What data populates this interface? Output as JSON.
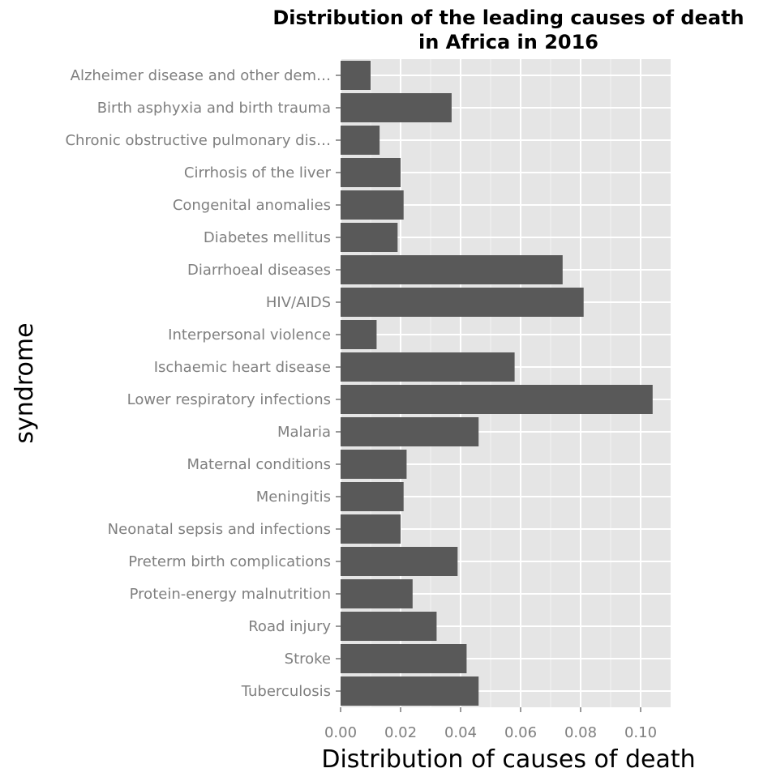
{
  "chart_data": {
    "type": "bar",
    "orientation": "horizontal",
    "title_lines": [
      "Distribution of the leading causes of death",
      "in Africa in 2016"
    ],
    "xlabel": "Distribution of causes of death",
    "ylabel": "syndrome",
    "xlim": [
      0,
      0.11
    ],
    "xticks": [
      0.0,
      0.02,
      0.04,
      0.06,
      0.08,
      0.1
    ],
    "xtick_labels": [
      "0.00",
      "0.02",
      "0.04",
      "0.06",
      "0.08",
      "0.10"
    ],
    "grid": true,
    "colors": {
      "bar": "#595959",
      "panel": "#e5e5e5",
      "grid": "#ffffff"
    },
    "categories": [
      "Alzheimer disease and other dem…",
      "Birth asphyxia and birth trauma",
      "Chronic obstructive pulmonary dis…",
      "Cirrhosis of the liver",
      "Congenital anomalies",
      "Diabetes mellitus",
      "Diarrhoeal diseases",
      "HIV/AIDS",
      "Interpersonal violence",
      "Ischaemic heart disease",
      "Lower respiratory infections",
      "Malaria",
      "Maternal conditions",
      "Meningitis",
      "Neonatal sepsis and infections",
      "Preterm birth complications",
      "Protein-energy malnutrition",
      "Road injury",
      "Stroke",
      "Tuberculosis"
    ],
    "values": [
      0.01,
      0.037,
      0.013,
      0.02,
      0.021,
      0.019,
      0.074,
      0.081,
      0.012,
      0.058,
      0.104,
      0.046,
      0.022,
      0.021,
      0.02,
      0.039,
      0.024,
      0.032,
      0.042,
      0.046
    ]
  }
}
